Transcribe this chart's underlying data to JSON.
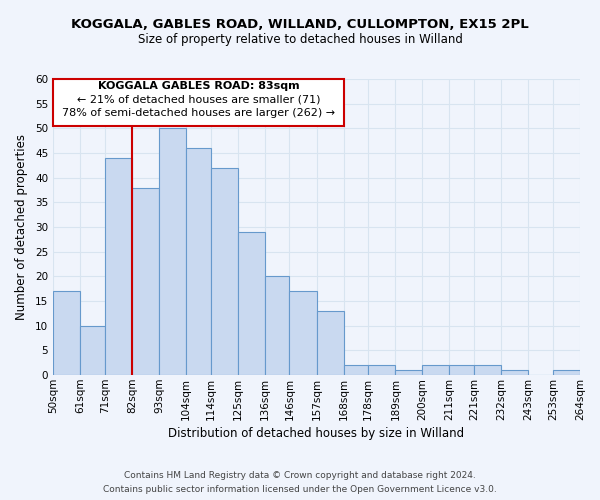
{
  "title": "KOGGALA, GABLES ROAD, WILLAND, CULLOMPTON, EX15 2PL",
  "subtitle": "Size of property relative to detached houses in Willand",
  "xlabel": "Distribution of detached houses by size in Willand",
  "ylabel": "Number of detached properties",
  "bar_edges": [
    50,
    61,
    71,
    82,
    93,
    104,
    114,
    125,
    136,
    146,
    157,
    168,
    178,
    189,
    200,
    211,
    221,
    232,
    243,
    253,
    264
  ],
  "bar_heights": [
    17,
    10,
    44,
    38,
    50,
    46,
    42,
    29,
    20,
    17,
    13,
    2,
    2,
    1,
    2,
    2,
    2,
    1,
    0,
    1
  ],
  "bar_color": "#c9d9f0",
  "bar_edgecolor": "#6699cc",
  "vline_x": 82,
  "vline_color": "#cc0000",
  "ylim": [
    0,
    60
  ],
  "annotation_title": "KOGGALA GABLES ROAD: 83sqm",
  "annotation_line1": "← 21% of detached houses are smaller (71)",
  "annotation_line2": "78% of semi-detached houses are larger (262) →",
  "annotation_box_edgecolor": "#cc0000",
  "footer1": "Contains HM Land Registry data © Crown copyright and database right 2024.",
  "footer2": "Contains public sector information licensed under the Open Government Licence v3.0.",
  "tick_labels": [
    "50sqm",
    "61sqm",
    "71sqm",
    "82sqm",
    "93sqm",
    "104sqm",
    "114sqm",
    "125sqm",
    "136sqm",
    "146sqm",
    "157sqm",
    "168sqm",
    "178sqm",
    "189sqm",
    "200sqm",
    "211sqm",
    "221sqm",
    "232sqm",
    "243sqm",
    "253sqm",
    "264sqm"
  ],
  "grid_color": "#d8e4f0",
  "background_color": "#f0f4fc",
  "title_fontsize": 9.5,
  "subtitle_fontsize": 8.5,
  "axis_label_fontsize": 8.5,
  "tick_fontsize": 7.5,
  "annotation_fontsize": 8.0,
  "footer_fontsize": 6.5
}
